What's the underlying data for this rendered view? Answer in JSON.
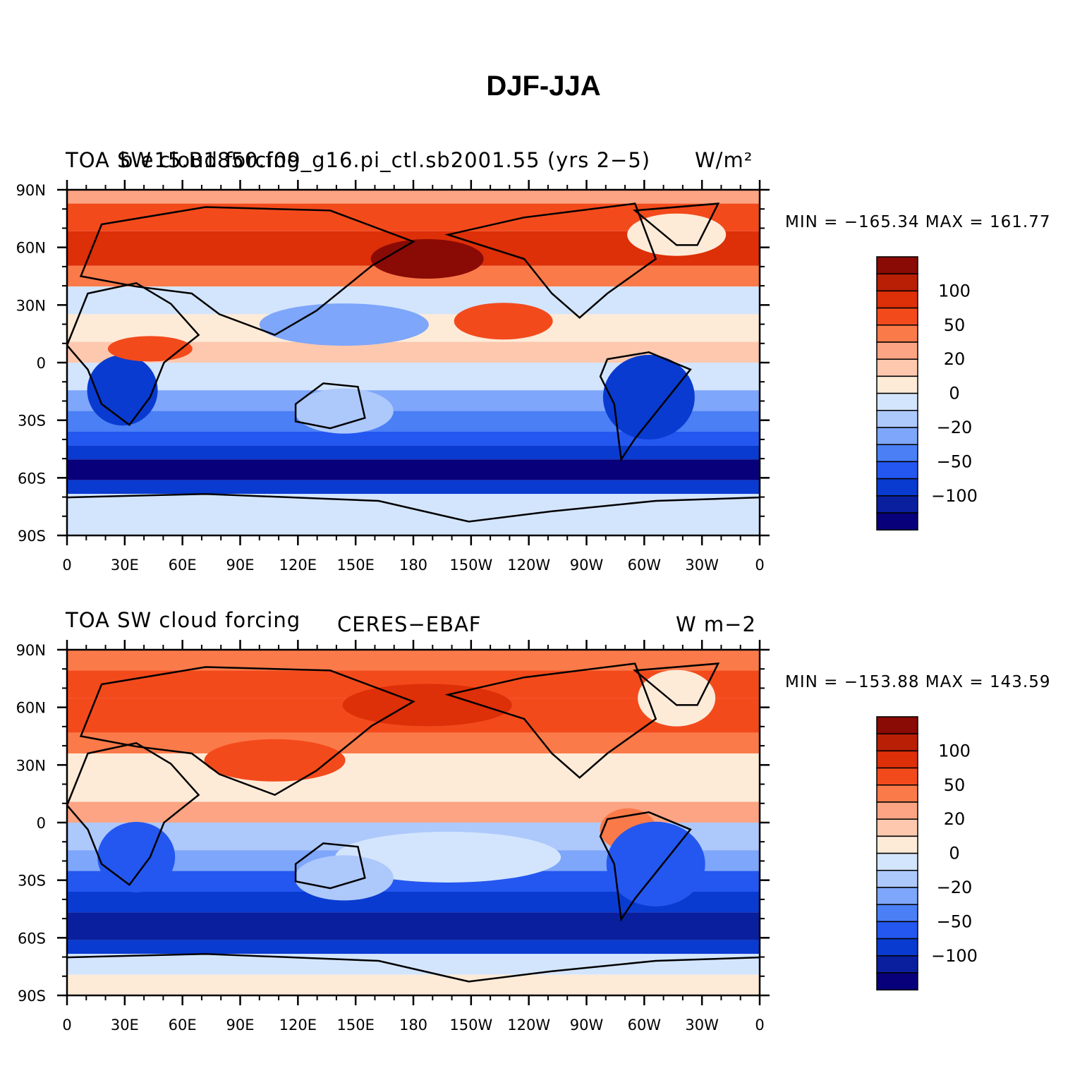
{
  "title": "DJF-JJA",
  "palette": [
    "#08007a",
    "#0a1f9e",
    "#0a3bd0",
    "#2457f0",
    "#4a7ff5",
    "#7ea6fa",
    "#adc8fb",
    "#d3e5fd",
    "#fdebd8",
    "#fdc8ae",
    "#fca483",
    "#fb7a4a",
    "#f34a1c",
    "#dd2f08",
    "#b81f05",
    "#8a0a05"
  ],
  "colorbar_labels": [
    "100",
    "50",
    "20",
    "0",
    "−20",
    "−50",
    "−100"
  ],
  "lat_labels": [
    "90N",
    "60N",
    "30N",
    "0",
    "30S",
    "60S",
    "90S"
  ],
  "lon_labels": [
    "0",
    "30E",
    "60E",
    "90E",
    "120E",
    "150E",
    "180",
    "150W",
    "120W",
    "90W",
    "60W",
    "30W",
    "0"
  ],
  "panels": [
    {
      "left_label": "TOA SW cloud forcing",
      "center_label": "b.e15.B1850.f09_g16.pi_ctl.sb2001.55 (yrs 2−5)",
      "right_label": "W/m²",
      "stats": "MIN = −165.34  MAX = 161.77"
    },
    {
      "left_label": "TOA SW cloud forcing",
      "center_label": "CERES−EBAF",
      "right_label": "W m−2",
      "stats": "MIN = −153.88  MAX = 143.59"
    }
  ]
}
